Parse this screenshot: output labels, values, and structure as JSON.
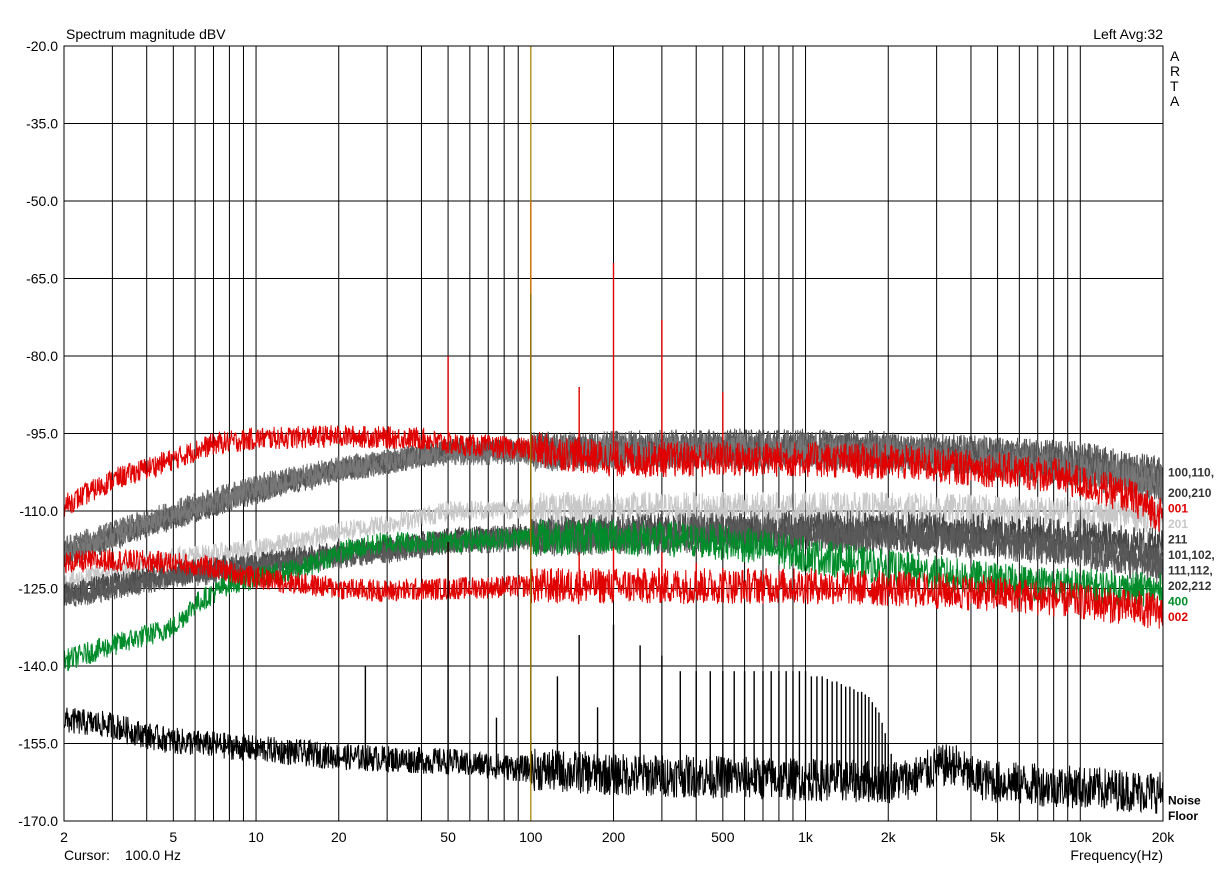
{
  "chart_data": {
    "type": "line",
    "title": "Spectrum magnitude dBV",
    "channel_info": "Left  Avg:32",
    "brand_letters": [
      "A",
      "R",
      "T",
      "A"
    ],
    "xlabel": "Frequency(Hz)",
    "ylabel": "",
    "x_scale": "log",
    "xlim": [
      2,
      20000
    ],
    "ylim": [
      -170,
      -20
    ],
    "grid": true,
    "cursor_label": "Cursor:",
    "cursor_value": "100.0 Hz",
    "cursor_hz": 100,
    "x_ticks": [
      {
        "value": 2,
        "label": "2"
      },
      {
        "value": 5,
        "label": "5"
      },
      {
        "value": 10,
        "label": "10"
      },
      {
        "value": 20,
        "label": "20"
      },
      {
        "value": 50,
        "label": "50"
      },
      {
        "value": 100,
        "label": "100"
      },
      {
        "value": 200,
        "label": "200"
      },
      {
        "value": 500,
        "label": "500"
      },
      {
        "value": 1000,
        "label": "1k"
      },
      {
        "value": 2000,
        "label": "2k"
      },
      {
        "value": 5000,
        "label": "5k"
      },
      {
        "value": 10000,
        "label": "10k"
      },
      {
        "value": 20000,
        "label": "20k"
      }
    ],
    "y_ticks": [
      {
        "value": -20,
        "label": "-20.0"
      },
      {
        "value": -35,
        "label": "-35.0"
      },
      {
        "value": -50,
        "label": "-50.0"
      },
      {
        "value": -65,
        "label": "-65.0"
      },
      {
        "value": -80,
        "label": "-80.0"
      },
      {
        "value": -95,
        "label": "-95.0"
      },
      {
        "value": -110,
        "label": "-110.0"
      },
      {
        "value": -125,
        "label": "-125.0"
      },
      {
        "value": -140,
        "label": "-140.0"
      },
      {
        "value": -155,
        "label": "-155.0"
      },
      {
        "value": -170,
        "label": "-170.0"
      }
    ],
    "series": [
      {
        "key": "s100",
        "color": "#505050",
        "band": 2.2,
        "x": [
          2,
          3,
          5,
          10,
          20,
          50,
          100,
          200,
          500,
          1000,
          2000,
          5000,
          10000,
          20000
        ],
        "y": [
          -118,
          -115,
          -111,
          -106,
          -102,
          -98,
          -98,
          -98,
          -97.5,
          -97.5,
          -98,
          -99,
          -100,
          -103
        ],
        "peaks": []
      },
      {
        "key": "s110",
        "color": "#6a6a6a",
        "band": 2.2,
        "x": [
          2,
          3,
          5,
          10,
          20,
          50,
          100,
          200,
          500,
          1000,
          2000,
          5000,
          10000,
          20000
        ],
        "y": [
          -117,
          -114,
          -110,
          -105,
          -101.5,
          -98.5,
          -98.5,
          -98,
          -98,
          -98,
          -98.5,
          -99.5,
          -101,
          -104
        ],
        "peaks": []
      },
      {
        "key": "s200",
        "color": "#555555",
        "band": 2.2,
        "x": [
          2,
          3,
          5,
          10,
          20,
          50,
          100,
          200,
          500,
          1000,
          2000,
          5000,
          10000,
          20000
        ],
        "y": [
          -119,
          -115.5,
          -111.5,
          -106.5,
          -102.5,
          -98.5,
          -98.5,
          -98.5,
          -98,
          -98,
          -98.5,
          -100,
          -101.5,
          -105
        ],
        "peaks": []
      },
      {
        "key": "s210",
        "color": "#777777",
        "band": 2.2,
        "x": [
          2,
          3,
          5,
          10,
          20,
          50,
          100,
          200,
          500,
          1000,
          2000,
          5000,
          10000,
          20000
        ],
        "y": [
          -118.5,
          -115,
          -111,
          -106,
          -102,
          -99,
          -99,
          -98.5,
          -98.5,
          -98.5,
          -99,
          -100.5,
          -102,
          -105.5
        ],
        "peaks": []
      },
      {
        "key": "s201",
        "color": "#c8c8c8",
        "band": 2.0,
        "x": [
          2,
          3,
          5,
          10,
          20,
          30,
          50,
          100,
          200,
          500,
          1000,
          2000,
          5000,
          10000,
          20000
        ],
        "y": [
          -124,
          -121.5,
          -119,
          -117.5,
          -114,
          -112.5,
          -110,
          -109.5,
          -109.5,
          -109.5,
          -109.5,
          -109.5,
          -110,
          -110.5,
          -111
        ],
        "peaks": []
      },
      {
        "key": "s211",
        "color": "#444444",
        "band": 2.2,
        "x": [
          2,
          3,
          5,
          10,
          20,
          50,
          100,
          200,
          500,
          1000,
          2000,
          5000,
          10000,
          20000
        ],
        "y": [
          -126,
          -124,
          -122,
          -120,
          -118,
          -115.5,
          -114.5,
          -114,
          -113.5,
          -113.5,
          -113.5,
          -114,
          -115,
          -117
        ],
        "peaks": [
          [
            100,
            -97
          ],
          [
            150,
            -115
          ],
          [
            200,
            -108
          ],
          [
            300,
            -110
          ],
          [
            400,
            -112
          ],
          [
            500,
            -114
          ],
          [
            600,
            -115
          ],
          [
            700,
            -113
          ],
          [
            800,
            -114
          ],
          [
            900,
            -115
          ],
          [
            1000,
            -112
          ],
          [
            1100,
            -114
          ],
          [
            1200,
            -115
          ],
          [
            1300,
            -114
          ],
          [
            1400,
            -115
          ],
          [
            1500,
            -114
          ]
        ]
      },
      {
        "key": "s101",
        "color": "#505050",
        "band": 2.2,
        "x": [
          2,
          3,
          5,
          10,
          20,
          50,
          100,
          200,
          500,
          1000,
          2000,
          5000,
          10000,
          20000
        ],
        "y": [
          -126.5,
          -124.5,
          -122.5,
          -120.5,
          -118.5,
          -116,
          -115,
          -114.5,
          -114,
          -114,
          -114.5,
          -115.5,
          -117,
          -120
        ],
        "peaks": []
      },
      {
        "key": "s102",
        "color": "#5a5a5a",
        "band": 2.2,
        "x": [
          2,
          3,
          5,
          10,
          20,
          50,
          100,
          200,
          500,
          1000,
          2000,
          5000,
          10000,
          20000
        ],
        "y": [
          -127,
          -125,
          -123,
          -121,
          -119,
          -116.5,
          -115.5,
          -115,
          -114.5,
          -114.5,
          -115,
          -116,
          -117.5,
          -121
        ],
        "peaks": []
      },
      {
        "key": "s400",
        "color": "#008c2a",
        "band": 2.2,
        "x": [
          2,
          3,
          5,
          6,
          8,
          10,
          15,
          20,
          30,
          50,
          100,
          200,
          500,
          700,
          1000,
          2000,
          5000,
          10000,
          20000
        ],
        "y": [
          -139,
          -136,
          -132.5,
          -128,
          -124,
          -123,
          -121,
          -118,
          -116,
          -116,
          -115,
          -115,
          -116,
          -117,
          -118.5,
          -121,
          -123.5,
          -124.5,
          -125.5
        ],
        "peaks": []
      },
      {
        "key": "s001",
        "color": "#e00000",
        "band": 2.2,
        "x": [
          2,
          3,
          5,
          7,
          10,
          20,
          40,
          50,
          100,
          200,
          500,
          1000,
          2000,
          5000,
          8000,
          10000,
          15000,
          20000
        ],
        "y": [
          -109,
          -104,
          -100,
          -97,
          -96,
          -95.5,
          -96,
          -97,
          -98,
          -100,
          -100,
          -100,
          -100.5,
          -102,
          -103,
          -104.5,
          -107,
          -111
        ],
        "peaks": [
          [
            50,
            -80
          ],
          [
            100,
            -50
          ],
          [
            150,
            -86
          ],
          [
            200,
            -62
          ],
          [
            300,
            -73
          ],
          [
            500,
            -87
          ]
        ]
      },
      {
        "key": "s002",
        "color": "#e00000",
        "band": 2.2,
        "x": [
          2,
          3,
          5,
          7,
          10,
          20,
          30,
          50,
          100,
          200,
          500,
          1000,
          2000,
          5000,
          10000,
          20000
        ],
        "y": [
          -120,
          -119.5,
          -120,
          -121,
          -123,
          -125,
          -125.5,
          -125,
          -124.5,
          -124.5,
          -124.5,
          -124.5,
          -125,
          -126,
          -127.5,
          -129.5
        ],
        "peaks": [
          [
            50,
            -116
          ],
          [
            100,
            -93
          ],
          [
            150,
            -118
          ],
          [
            200,
            -117
          ],
          [
            300,
            -118
          ],
          [
            400,
            -120
          ],
          [
            500,
            -121
          ]
        ]
      },
      {
        "key": "noise",
        "color": "#000000",
        "band": 2.6,
        "x": [
          2,
          3,
          4,
          5,
          10,
          20,
          30,
          50,
          100,
          200,
          500,
          1000,
          2000,
          2500,
          3000,
          3500,
          4000,
          5000,
          10000,
          20000
        ],
        "y": [
          -150.5,
          -151.5,
          -153.5,
          -154.5,
          -156,
          -157.5,
          -158,
          -158.5,
          -160,
          -161,
          -161.5,
          -162,
          -162.5,
          -161.5,
          -159.5,
          -159,
          -161.5,
          -162.5,
          -163.5,
          -164.5
        ],
        "peaks": [
          [
            25,
            -140
          ],
          [
            50,
            -116
          ],
          [
            75,
            -150
          ],
          [
            100,
            -68
          ],
          [
            125,
            -142
          ],
          [
            150,
            -134
          ],
          [
            175,
            -148
          ],
          [
            200,
            -132
          ],
          [
            250,
            -136
          ],
          [
            300,
            -138
          ],
          [
            350,
            -141
          ],
          [
            400,
            -141
          ],
          [
            450,
            -141
          ],
          [
            500,
            -141
          ],
          [
            550,
            -141
          ],
          [
            600,
            -141
          ],
          [
            650,
            -141
          ],
          [
            700,
            -141
          ],
          [
            750,
            -141
          ],
          [
            800,
            -141
          ],
          [
            850,
            -141
          ],
          [
            900,
            -141
          ],
          [
            950,
            -141
          ],
          [
            1000,
            -141
          ],
          [
            1050,
            -142
          ],
          [
            1100,
            -142
          ],
          [
            1150,
            -142
          ],
          [
            1200,
            -142.5
          ],
          [
            1250,
            -143
          ],
          [
            1300,
            -143
          ],
          [
            1350,
            -143.5
          ],
          [
            1400,
            -144
          ],
          [
            1450,
            -144
          ],
          [
            1500,
            -144.5
          ],
          [
            1550,
            -145
          ],
          [
            1600,
            -145
          ],
          [
            1650,
            -145.5
          ],
          [
            1700,
            -146
          ],
          [
            1750,
            -147
          ],
          [
            1800,
            -148
          ],
          [
            1850,
            -149
          ],
          [
            1900,
            -151
          ],
          [
            1950,
            -153
          ],
          [
            2000,
            -155
          ],
          [
            2050,
            -157
          ],
          [
            2100,
            -159
          ]
        ]
      }
    ],
    "legend": [
      {
        "text": "100,110,",
        "color": "#333333",
        "y": -102.5
      },
      {
        "text": "200,210",
        "color": "#333333",
        "y": -106.5
      },
      {
        "text": "001",
        "color": "#e00000",
        "y": -109.5
      },
      {
        "text": "201",
        "color": "#c8c8c8",
        "y": -112.5
      },
      {
        "text": "211",
        "color": "#333333",
        "y": -115.5
      },
      {
        "text": "101,102,",
        "color": "#333333",
        "y": -118.5
      },
      {
        "text": "111,112,",
        "color": "#333333",
        "y": -121.5
      },
      {
        "text": "202,212",
        "color": "#333333",
        "y": -124.5
      },
      {
        "text": "400",
        "color": "#008c2a",
        "y": -127.5
      },
      {
        "text": "002",
        "color": "#e00000",
        "y": -130.5
      },
      {
        "text": "Noise",
        "color": "#000000",
        "y": -166
      },
      {
        "text": "Floor",
        "color": "#000000",
        "y": -169
      }
    ]
  }
}
